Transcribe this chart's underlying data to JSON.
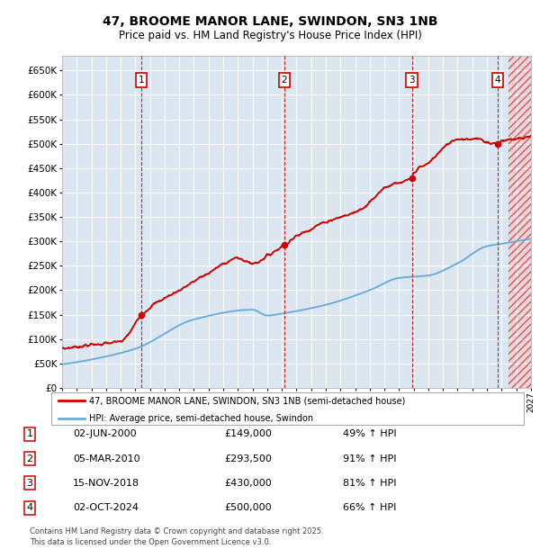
{
  "title": "47, BROOME MANOR LANE, SWINDON, SN3 1NB",
  "subtitle": "Price paid vs. HM Land Registry's House Price Index (HPI)",
  "background_color": "#dce6f0",
  "plot_bg_color": "#dce6f0",
  "ylim": [
    0,
    680000
  ],
  "yticks": [
    0,
    50000,
    100000,
    150000,
    200000,
    250000,
    300000,
    350000,
    400000,
    450000,
    500000,
    550000,
    600000,
    650000
  ],
  "xlim_start": 1995,
  "xlim_end": 2027,
  "transactions": [
    {
      "num": 1,
      "date_x": 2000.42,
      "price": 149000,
      "label": "02-JUN-2000",
      "price_str": "£149,000",
      "pct": "49% ↑ HPI"
    },
    {
      "num": 2,
      "date_x": 2010.17,
      "price": 293500,
      "label": "05-MAR-2010",
      "price_str": "£293,500",
      "pct": "91% ↑ HPI"
    },
    {
      "num": 3,
      "date_x": 2018.88,
      "price": 430000,
      "label": "15-NOV-2018",
      "price_str": "£430,000",
      "pct": "81% ↑ HPI"
    },
    {
      "num": 4,
      "date_x": 2024.75,
      "price": 500000,
      "label": "02-OCT-2024",
      "price_str": "£500,000",
      "pct": "66% ↑ HPI"
    }
  ],
  "hpi_line_color": "#6baed6",
  "price_line_color": "#cc0000",
  "grid_color": "#ffffff",
  "dashed_line_color": "#cc0000",
  "legend_label_red": "47, BROOME MANOR LANE, SWINDON, SN3 1NB (semi-detached house)",
  "legend_label_blue": "HPI: Average price, semi-detached house, Swindon",
  "footer": "Contains HM Land Registry data © Crown copyright and database right 2025.\nThis data is licensed under the Open Government Licence v3.0.",
  "hatch_color": "#cc0000",
  "hpi_anchors_x": [
    1995,
    1997,
    2000,
    2004,
    2008,
    2009,
    2010,
    2013,
    2016,
    2018,
    2020,
    2022,
    2024,
    2025,
    2027
  ],
  "hpi_anchors_y": [
    48000,
    58000,
    80000,
    140000,
    160000,
    148000,
    152000,
    170000,
    200000,
    225000,
    230000,
    255000,
    290000,
    295000,
    305000
  ],
  "red_anchors_x": [
    1995,
    1997,
    1999,
    2000.42,
    2001,
    2003,
    2005,
    2007,
    2008,
    2009,
    2010.17,
    2011,
    2013,
    2015,
    2016,
    2017,
    2018.88,
    2019,
    2020,
    2021,
    2022,
    2023,
    2024.75,
    2025,
    2026,
    2027
  ],
  "red_anchors_y": [
    80000,
    88000,
    95000,
    149000,
    165000,
    200000,
    235000,
    265000,
    255000,
    270000,
    293500,
    310000,
    340000,
    360000,
    380000,
    410000,
    430000,
    440000,
    460000,
    490000,
    510000,
    510000,
    500000,
    505000,
    510000,
    515000
  ]
}
